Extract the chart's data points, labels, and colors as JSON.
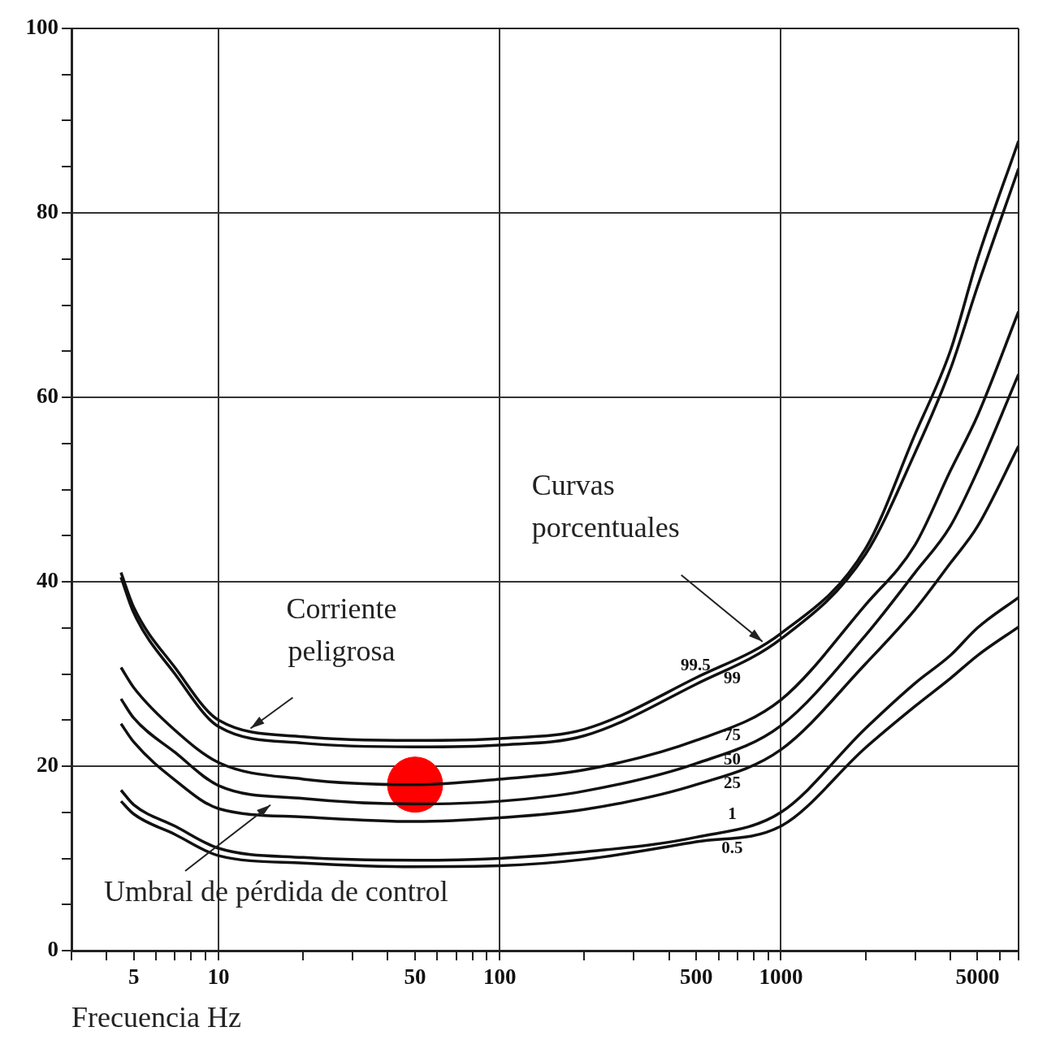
{
  "chart_data": {
    "type": "line",
    "xlabel": "Frecuencia Hz",
    "log": "x",
    "grid": true,
    "marker": "none",
    "line_style": "solid",
    "legend": false,
    "xlim": [
      3,
      7000
    ],
    "ylim": [
      0,
      100
    ],
    "xticks": [
      {
        "value": 3,
        "label": null
      },
      {
        "value": 4,
        "label": null
      },
      5,
      {
        "value": 6,
        "label": null
      },
      {
        "value": 7,
        "label": null
      },
      {
        "value": 8,
        "label": null
      },
      {
        "value": 9,
        "label": null
      },
      10,
      {
        "value": 20,
        "label": null
      },
      {
        "value": 30,
        "label": null
      },
      {
        "value": 40,
        "label": null
      },
      50,
      {
        "value": 60,
        "label": null
      },
      {
        "value": 70,
        "label": null
      },
      {
        "value": 80,
        "label": null
      },
      {
        "value": 90,
        "label": null
      },
      100,
      {
        "value": 200,
        "label": null
      },
      {
        "value": 300,
        "label": null
      },
      {
        "value": 400,
        "label": null
      },
      500,
      {
        "value": 600,
        "label": null
      },
      {
        "value": 700,
        "label": null
      },
      {
        "value": 800,
        "label": null
      },
      {
        "value": 900,
        "label": null
      },
      1000,
      {
        "value": 2000,
        "label": null
      },
      {
        "value": 3000,
        "label": null
      },
      {
        "value": 4000,
        "label": null
      },
      5000,
      {
        "value": 6000,
        "label": null
      },
      {
        "value": 7000,
        "label": null
      }
    ],
    "yticks": [
      0,
      {
        "value": 5,
        "label": null
      },
      {
        "value": 10,
        "label": null
      },
      {
        "value": 15,
        "label": null
      },
      20,
      {
        "value": 25,
        "label": null
      },
      {
        "value": 30,
        "label": null
      },
      {
        "value": 35,
        "label": null
      },
      40,
      {
        "value": 45,
        "label": null
      },
      {
        "value": 50,
        "label": null
      },
      {
        "value": 55,
        "label": null
      },
      60,
      {
        "value": 65,
        "label": null
      },
      {
        "value": 70,
        "label": null
      },
      {
        "value": 75,
        "label": null
      },
      80,
      {
        "value": 85,
        "label": null
      },
      {
        "value": 90,
        "label": null
      },
      {
        "value": 95,
        "label": null
      },
      100
    ],
    "x": [
      4.5,
      5,
      7,
      10,
      20,
      50,
      100,
      200,
      500,
      1000,
      2000,
      3000,
      4000,
      5000,
      7000
    ],
    "series": [
      {
        "name": "99.5",
        "color": "#111111",
        "values": [
          41,
          37.2,
          30.7,
          25,
          23.2,
          22.8,
          23,
          24,
          29.6,
          34.4,
          43.6,
          56,
          65,
          75,
          87.8
        ]
      },
      {
        "name": "99",
        "color": "#111111",
        "values": [
          40.5,
          36.6,
          30,
          24.3,
          22.5,
          22.1,
          22.3,
          23.3,
          28.9,
          33.8,
          43,
          54,
          63,
          72,
          84.8
        ]
      },
      {
        "name": "75",
        "color": "#111111",
        "values": [
          30.7,
          28.5,
          23.9,
          20.4,
          18.6,
          18,
          18.6,
          19.6,
          22.8,
          27.2,
          37.5,
          44,
          52,
          58,
          69.3
        ]
      },
      {
        "name": "50",
        "color": "#111111",
        "values": [
          27.3,
          25.2,
          21.5,
          17.9,
          16.5,
          15.9,
          16.2,
          17.3,
          20.3,
          24.4,
          34.2,
          41,
          46,
          52,
          62.5
        ]
      },
      {
        "name": "25",
        "color": "#111111",
        "values": [
          24.6,
          22.6,
          18.5,
          15.4,
          14.5,
          14,
          14.4,
          15.3,
          18,
          21.8,
          31.1,
          37,
          42,
          46,
          54.7
        ]
      },
      {
        "name": "1",
        "color": "#111111",
        "values": [
          17.4,
          15.8,
          13.5,
          11.1,
          10.1,
          9.8,
          10,
          10.7,
          12.3,
          15,
          24.1,
          29,
          32,
          35,
          38.3
        ]
      },
      {
        "name": "0.5",
        "color": "#111111",
        "values": [
          16.2,
          14.8,
          12.6,
          10.3,
          9.5,
          9.1,
          9.2,
          9.9,
          11.8,
          13.5,
          22,
          26.5,
          29.5,
          32,
          35.1
        ]
      },
      {
        "type": "scatter",
        "color": "#ff0000",
        "x": [
          50
        ],
        "values": [
          18
        ],
        "marker": "circle"
      }
    ],
    "annotations": [
      {
        "text": "Corriente\npeligrosa",
        "x": 13,
        "y": 24.1
      },
      {
        "text": "Curvas\nporcentuales",
        "x": 860,
        "y": 33.5
      },
      "Umbral de pérdida de control"
    ]
  }
}
